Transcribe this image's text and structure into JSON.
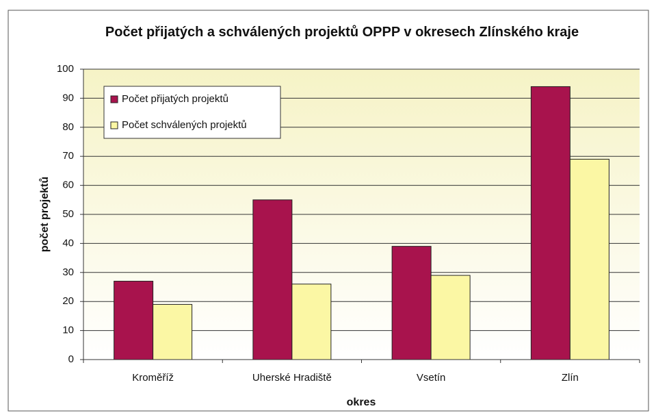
{
  "chart_data": {
    "type": "bar",
    "title": "Počet přijatých a schválených projektů OPPP v okresech Zlínského kraje",
    "x_label": "okres",
    "y_label": "počet projektů",
    "categories": [
      "Kroměříž",
      "Uherské Hradiště",
      "Vsetín",
      "Zlín"
    ],
    "series": [
      {
        "name": "Počet přijatých projektů",
        "color": "#a8134d",
        "values": [
          27,
          55,
          39,
          94
        ]
      },
      {
        "name": "Počet schválených projektů",
        "color": "#fbf7a4",
        "values": [
          19,
          26,
          29,
          69
        ]
      }
    ],
    "ylim": [
      0,
      100
    ],
    "yticks": [
      0,
      10,
      20,
      30,
      40,
      50,
      60,
      70,
      80,
      90,
      100
    ],
    "grid": true,
    "legend": "upper left"
  }
}
